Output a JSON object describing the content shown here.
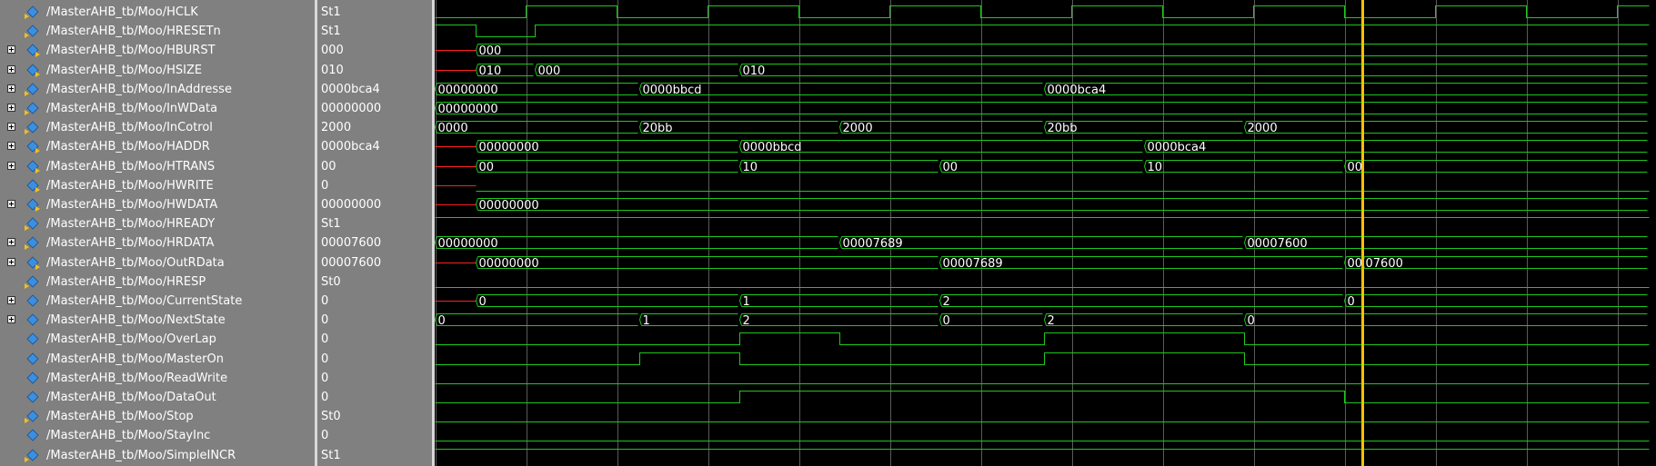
{
  "colors": {
    "wave": "#1dc81d",
    "cursor": "#ffc000",
    "reset_segment": "#ff2020",
    "grid": "#5a5a5a",
    "icon_blue": "#3a8fe0",
    "icon_yellow": "#f0c020"
  },
  "timeline": {
    "start": 0,
    "end": 1335,
    "half_period": 100
  },
  "cursor": {
    "time": 1020
  },
  "signals": [
    {
      "name": "/MasterAHB_tb/Moo/HCLK",
      "value": "St1",
      "expandable": false,
      "kind": "in",
      "wave": {
        "type": "clock",
        "start_level": 0,
        "period": 200
      }
    },
    {
      "name": "/MasterAHB_tb/Moo/HRESETn",
      "value": "St1",
      "expandable": false,
      "kind": "in",
      "wave": {
        "type": "bit",
        "init": 1,
        "edges": [
          [
            45,
            0
          ],
          [
            110,
            1
          ]
        ]
      }
    },
    {
      "name": "/MasterAHB_tb/Moo/HBURST",
      "value": "000",
      "expandable": true,
      "kind": "out",
      "wave": {
        "type": "bus",
        "x": 45,
        "segments": [
          [
            45,
            "000"
          ]
        ]
      }
    },
    {
      "name": "/MasterAHB_tb/Moo/HSIZE",
      "value": "010",
      "expandable": true,
      "kind": "out",
      "wave": {
        "type": "bus",
        "x": 45,
        "segments": [
          [
            45,
            "010"
          ],
          [
            110,
            "000"
          ],
          [
            335,
            "010"
          ]
        ]
      }
    },
    {
      "name": "/MasterAHB_tb/Moo/InAddresse",
      "value": "0000bca4",
      "expandable": true,
      "kind": "in",
      "wave": {
        "type": "bus",
        "segments": [
          [
            0,
            "00000000"
          ],
          [
            225,
            "0000bbcd"
          ],
          [
            670,
            "0000bca4"
          ]
        ]
      }
    },
    {
      "name": "/MasterAHB_tb/Moo/InWData",
      "value": "00000000",
      "expandable": true,
      "kind": "in",
      "wave": {
        "type": "bus",
        "segments": [
          [
            0,
            "00000000"
          ]
        ]
      }
    },
    {
      "name": "/MasterAHB_tb/Moo/InCotrol",
      "value": "2000",
      "expandable": true,
      "kind": "in",
      "wave": {
        "type": "bus",
        "segments": [
          [
            0,
            "0000"
          ],
          [
            225,
            "20bb"
          ],
          [
            445,
            "2000"
          ],
          [
            670,
            "20bb"
          ],
          [
            890,
            "2000"
          ]
        ]
      }
    },
    {
      "name": "/MasterAHB_tb/Moo/HADDR",
      "value": "0000bca4",
      "expandable": true,
      "kind": "out",
      "wave": {
        "type": "bus",
        "x": 45,
        "segments": [
          [
            45,
            "00000000"
          ],
          [
            335,
            "0000bbcd"
          ],
          [
            780,
            "0000bca4"
          ]
        ]
      }
    },
    {
      "name": "/MasterAHB_tb/Moo/HTRANS",
      "value": "00",
      "expandable": true,
      "kind": "out",
      "wave": {
        "type": "bus",
        "x": 45,
        "segments": [
          [
            45,
            "00"
          ],
          [
            335,
            "10"
          ],
          [
            555,
            "00"
          ],
          [
            780,
            "10"
          ],
          [
            1000,
            "00"
          ]
        ]
      }
    },
    {
      "name": "/MasterAHB_tb/Moo/HWRITE",
      "value": "0",
      "expandable": false,
      "kind": "out",
      "wave": {
        "type": "bit",
        "init": 0,
        "x": 45,
        "edges": []
      }
    },
    {
      "name": "/MasterAHB_tb/Moo/HWDATA",
      "value": "00000000",
      "expandable": true,
      "kind": "out",
      "wave": {
        "type": "bus",
        "x": 45,
        "segments": [
          [
            45,
            "00000000"
          ]
        ]
      }
    },
    {
      "name": "/MasterAHB_tb/Moo/HREADY",
      "value": "St1",
      "expandable": false,
      "kind": "in",
      "wave": {
        "type": "bit",
        "init": 1,
        "edges": []
      }
    },
    {
      "name": "/MasterAHB_tb/Moo/HRDATA",
      "value": "00007600",
      "expandable": true,
      "kind": "in",
      "wave": {
        "type": "bus",
        "segments": [
          [
            0,
            "00000000"
          ],
          [
            445,
            "00007689"
          ],
          [
            890,
            "00007600"
          ]
        ]
      }
    },
    {
      "name": "/MasterAHB_tb/Moo/OutRData",
      "value": "00007600",
      "expandable": true,
      "kind": "out",
      "wave": {
        "type": "bus",
        "x": 45,
        "segments": [
          [
            45,
            "00000000"
          ],
          [
            555,
            "00007689"
          ],
          [
            1000,
            "00007689"
          ],
          [
            1020,
            "00007600"
          ]
        ],
        "label_override": {
          "2": "00",
          "3": "07600"
        }
      }
    },
    {
      "name": "/MasterAHB_tb/Moo/HRESP",
      "value": "St0",
      "expandable": false,
      "kind": "in",
      "wave": {
        "type": "bit",
        "init": 0,
        "edges": []
      }
    },
    {
      "name": "/MasterAHB_tb/Moo/CurrentState",
      "value": "0",
      "expandable": true,
      "kind": "int",
      "wave": {
        "type": "bus",
        "x": 45,
        "segments": [
          [
            45,
            "0"
          ],
          [
            335,
            "1"
          ],
          [
            555,
            "2"
          ],
          [
            1000,
            "0"
          ]
        ]
      }
    },
    {
      "name": "/MasterAHB_tb/Moo/NextState",
      "value": "0",
      "expandable": true,
      "kind": "int",
      "wave": {
        "type": "bus",
        "segments": [
          [
            0,
            "0"
          ],
          [
            225,
            "1"
          ],
          [
            335,
            "2"
          ],
          [
            555,
            "0"
          ],
          [
            670,
            "2"
          ],
          [
            890,
            "0"
          ]
        ]
      }
    },
    {
      "name": "/MasterAHB_tb/Moo/OverLap",
      "value": "0",
      "expandable": false,
      "kind": "int",
      "wave": {
        "type": "bit",
        "init": 0,
        "edges": [
          [
            335,
            1
          ],
          [
            445,
            0
          ],
          [
            670,
            1
          ],
          [
            890,
            0
          ]
        ]
      }
    },
    {
      "name": "/MasterAHB_tb/Moo/MasterOn",
      "value": "0",
      "expandable": false,
      "kind": "int",
      "wave": {
        "type": "bit",
        "init": 0,
        "edges": [
          [
            225,
            1
          ],
          [
            335,
            0
          ],
          [
            445,
            0
          ],
          [
            670,
            1
          ],
          [
            890,
            0
          ]
        ]
      }
    },
    {
      "name": "/MasterAHB_tb/Moo/ReadWrite",
      "value": "0",
      "expandable": false,
      "kind": "int",
      "wave": {
        "type": "bit",
        "init": 0,
        "edges": []
      }
    },
    {
      "name": "/MasterAHB_tb/Moo/DataOut",
      "value": "0",
      "expandable": false,
      "kind": "int",
      "wave": {
        "type": "bit",
        "init": 0,
        "edges": [
          [
            335,
            1
          ],
          [
            1000,
            0
          ]
        ]
      }
    },
    {
      "name": "/MasterAHB_tb/Moo/Stop",
      "value": "St0",
      "expandable": false,
      "kind": "in",
      "wave": {
        "type": "bit",
        "init": 0,
        "edges": []
      }
    },
    {
      "name": "/MasterAHB_tb/Moo/StayInc",
      "value": "0",
      "expandable": false,
      "kind": "int",
      "wave": {
        "type": "bit",
        "init": 0,
        "edges": []
      }
    },
    {
      "name": "/MasterAHB_tb/Moo/SimpleINCR",
      "value": "St1",
      "expandable": false,
      "kind": "in",
      "wave": {
        "type": "bit",
        "init": 1,
        "edges": []
      }
    }
  ]
}
